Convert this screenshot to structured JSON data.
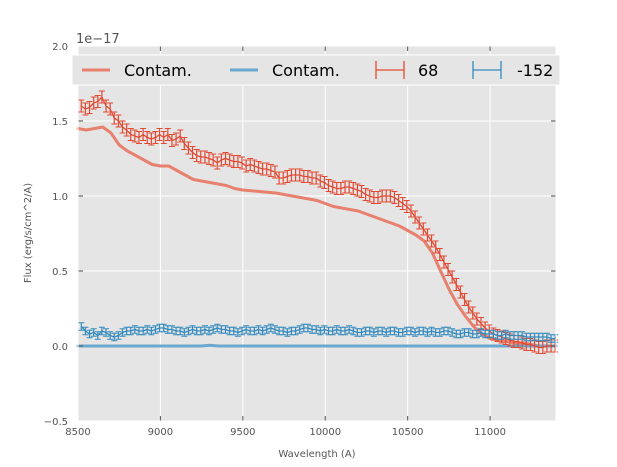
{
  "chart_data": {
    "type": "line",
    "title": "",
    "xlabel": "Wavelength (A)",
    "ylabel": "Flux (erg/s/cm^2/A)",
    "y_offset_label": "1e−17",
    "xlim": [
      8500,
      11400
    ],
    "ylim": [
      -0.5,
      2.0
    ],
    "xticks": [
      8500,
      9000,
      9500,
      10000,
      10500,
      11000
    ],
    "yticks": [
      -0.5,
      0.0,
      0.5,
      1.0,
      1.5,
      2.0
    ],
    "xtick_labels": [
      "8500",
      "9000",
      "9500",
      "10000",
      "10500",
      "11000"
    ],
    "ytick_labels": [
      "−0.5",
      "0.0",
      "0.5",
      "1.0",
      "1.5",
      "2.0"
    ],
    "grid": true,
    "legend_position": "top",
    "legend": [
      {
        "label": "Contam.",
        "kind": "line",
        "color": "#E8806E"
      },
      {
        "label": "Contam.",
        "kind": "line",
        "color": "#6BA8CF"
      },
      {
        "label": "68",
        "kind": "errorbar",
        "color": "#E24A33"
      },
      {
        "label": "-152",
        "kind": "errorbar",
        "color": "#348ABD"
      }
    ],
    "series": [
      {
        "name": "Contam.",
        "kind": "line",
        "color": "#E8806E",
        "x": [
          8500,
          8550,
          8600,
          8650,
          8700,
          8750,
          8800,
          8850,
          8900,
          8950,
          9000,
          9050,
          9100,
          9150,
          9200,
          9250,
          9300,
          9350,
          9400,
          9450,
          9500,
          9600,
          9700,
          9800,
          9900,
          9950,
          10000,
          10050,
          10100,
          10150,
          10200,
          10250,
          10300,
          10350,
          10400,
          10450,
          10500,
          10550,
          10600,
          10650,
          10700,
          10750,
          10800,
          10850,
          10900,
          10950,
          11000,
          11050,
          11100,
          11150,
          11200,
          11250,
          11300,
          11350,
          11400
        ],
        "y": [
          1.45,
          1.44,
          1.45,
          1.46,
          1.42,
          1.34,
          1.3,
          1.27,
          1.24,
          1.21,
          1.2,
          1.2,
          1.17,
          1.14,
          1.11,
          1.1,
          1.09,
          1.08,
          1.07,
          1.05,
          1.04,
          1.03,
          1.02,
          1.0,
          0.98,
          0.97,
          0.95,
          0.93,
          0.92,
          0.91,
          0.9,
          0.88,
          0.86,
          0.84,
          0.82,
          0.8,
          0.77,
          0.74,
          0.7,
          0.62,
          0.5,
          0.38,
          0.28,
          0.2,
          0.13,
          0.08,
          0.05,
          0.04,
          0.03,
          0.02,
          0.02,
          0.01,
          0.0,
          0.0,
          0.0
        ]
      },
      {
        "name": "Contam.",
        "kind": "line",
        "color": "#6BA8CF",
        "x": [
          8500,
          9250,
          9300,
          9350,
          9400,
          10000,
          10500,
          11000,
          11400
        ],
        "y": [
          0.0,
          0.0,
          0.005,
          0.0,
          0.0,
          0.0,
          0.0,
          0.0,
          0.0
        ]
      },
      {
        "name": "68",
        "kind": "errorbar",
        "color": "#E24A33",
        "x": [
          8520,
          8545,
          8570,
          8595,
          8620,
          8645,
          8670,
          8695,
          8720,
          8745,
          8770,
          8795,
          8820,
          8845,
          8870,
          8895,
          8920,
          8945,
          8970,
          8995,
          9020,
          9045,
          9070,
          9095,
          9120,
          9145,
          9170,
          9195,
          9220,
          9245,
          9270,
          9295,
          9320,
          9345,
          9370,
          9395,
          9420,
          9445,
          9470,
          9495,
          9520,
          9545,
          9570,
          9595,
          9620,
          9645,
          9670,
          9695,
          9720,
          9745,
          9770,
          9795,
          9820,
          9845,
          9870,
          9895,
          9920,
          9945,
          9970,
          9995,
          10020,
          10045,
          10070,
          10095,
          10120,
          10145,
          10170,
          10195,
          10220,
          10245,
          10270,
          10295,
          10320,
          10345,
          10370,
          10395,
          10420,
          10445,
          10470,
          10495,
          10520,
          10545,
          10570,
          10595,
          10620,
          10645,
          10670,
          10695,
          10720,
          10745,
          10770,
          10795,
          10820,
          10845,
          10870,
          10895,
          10920,
          10945,
          10970,
          10995,
          11020,
          11045,
          11070,
          11095,
          11120,
          11145,
          11170,
          11195,
          11220,
          11245,
          11270,
          11295,
          11320,
          11345,
          11370,
          11395
        ],
        "y": [
          1.6,
          1.58,
          1.59,
          1.62,
          1.63,
          1.66,
          1.6,
          1.58,
          1.52,
          1.5,
          1.46,
          1.44,
          1.41,
          1.4,
          1.39,
          1.41,
          1.39,
          1.38,
          1.39,
          1.41,
          1.39,
          1.41,
          1.37,
          1.38,
          1.4,
          1.35,
          1.32,
          1.29,
          1.27,
          1.26,
          1.26,
          1.25,
          1.24,
          1.22,
          1.24,
          1.25,
          1.24,
          1.23,
          1.23,
          1.22,
          1.2,
          1.21,
          1.2,
          1.19,
          1.18,
          1.18,
          1.17,
          1.16,
          1.12,
          1.12,
          1.13,
          1.14,
          1.14,
          1.14,
          1.13,
          1.13,
          1.12,
          1.12,
          1.1,
          1.09,
          1.07,
          1.06,
          1.05,
          1.05,
          1.06,
          1.06,
          1.05,
          1.04,
          1.03,
          1.01,
          1.0,
          0.99,
          0.99,
          1.0,
          1.0,
          1.0,
          0.99,
          0.97,
          0.95,
          0.93,
          0.9,
          0.86,
          0.82,
          0.78,
          0.74,
          0.7,
          0.66,
          0.61,
          0.56,
          0.51,
          0.46,
          0.41,
          0.36,
          0.31,
          0.26,
          0.22,
          0.18,
          0.15,
          0.12,
          0.1,
          0.08,
          0.07,
          0.06,
          0.05,
          0.04,
          0.03,
          0.03,
          0.02,
          0.01,
          0.01,
          0.0,
          -0.01,
          -0.01,
          0.0,
          0.0,
          0.0
        ],
        "err": 0.04
      },
      {
        "name": "-152",
        "kind": "errorbar",
        "color": "#348ABD",
        "x": [
          8520,
          8545,
          8570,
          8595,
          8620,
          8645,
          8670,
          8695,
          8720,
          8745,
          8770,
          8795,
          8820,
          8845,
          8870,
          8895,
          8920,
          8945,
          8970,
          8995,
          9020,
          9045,
          9070,
          9095,
          9120,
          9145,
          9170,
          9195,
          9220,
          9245,
          9270,
          9295,
          9320,
          9345,
          9370,
          9395,
          9420,
          9445,
          9470,
          9495,
          9520,
          9545,
          9570,
          9595,
          9620,
          9645,
          9670,
          9695,
          9720,
          9745,
          9770,
          9795,
          9820,
          9845,
          9870,
          9895,
          9920,
          9945,
          9970,
          9995,
          10020,
          10045,
          10070,
          10095,
          10120,
          10145,
          10170,
          10195,
          10220,
          10245,
          10270,
          10295,
          10320,
          10345,
          10370,
          10395,
          10420,
          10445,
          10470,
          10495,
          10520,
          10545,
          10570,
          10595,
          10620,
          10645,
          10670,
          10695,
          10720,
          10745,
          10770,
          10795,
          10820,
          10845,
          10870,
          10895,
          10920,
          10945,
          10970,
          10995,
          11020,
          11045,
          11070,
          11095,
          11120,
          11145,
          11170,
          11195,
          11220,
          11245,
          11270,
          11295,
          11320,
          11345,
          11370,
          11395
        ],
        "y": [
          0.13,
          0.1,
          0.08,
          0.09,
          0.07,
          0.1,
          0.09,
          0.07,
          0.06,
          0.07,
          0.09,
          0.1,
          0.1,
          0.11,
          0.1,
          0.1,
          0.11,
          0.1,
          0.11,
          0.12,
          0.12,
          0.11,
          0.11,
          0.1,
          0.1,
          0.09,
          0.1,
          0.11,
          0.1,
          0.1,
          0.11,
          0.1,
          0.11,
          0.12,
          0.11,
          0.11,
          0.1,
          0.1,
          0.09,
          0.1,
          0.11,
          0.1,
          0.1,
          0.11,
          0.1,
          0.11,
          0.12,
          0.11,
          0.1,
          0.1,
          0.09,
          0.1,
          0.1,
          0.11,
          0.12,
          0.12,
          0.11,
          0.11,
          0.1,
          0.11,
          0.1,
          0.1,
          0.11,
          0.1,
          0.1,
          0.11,
          0.1,
          0.09,
          0.09,
          0.1,
          0.1,
          0.09,
          0.1,
          0.1,
          0.09,
          0.1,
          0.1,
          0.09,
          0.09,
          0.1,
          0.1,
          0.09,
          0.1,
          0.1,
          0.09,
          0.1,
          0.09,
          0.09,
          0.1,
          0.1,
          0.09,
          0.08,
          0.08,
          0.09,
          0.09,
          0.08,
          0.08,
          0.09,
          0.08,
          0.08,
          0.08,
          0.07,
          0.07,
          0.08,
          0.07,
          0.07,
          0.07,
          0.07,
          0.06,
          0.06,
          0.06,
          0.06,
          0.06,
          0.06,
          0.05,
          0.05
        ],
        "err": 0.025
      }
    ]
  }
}
